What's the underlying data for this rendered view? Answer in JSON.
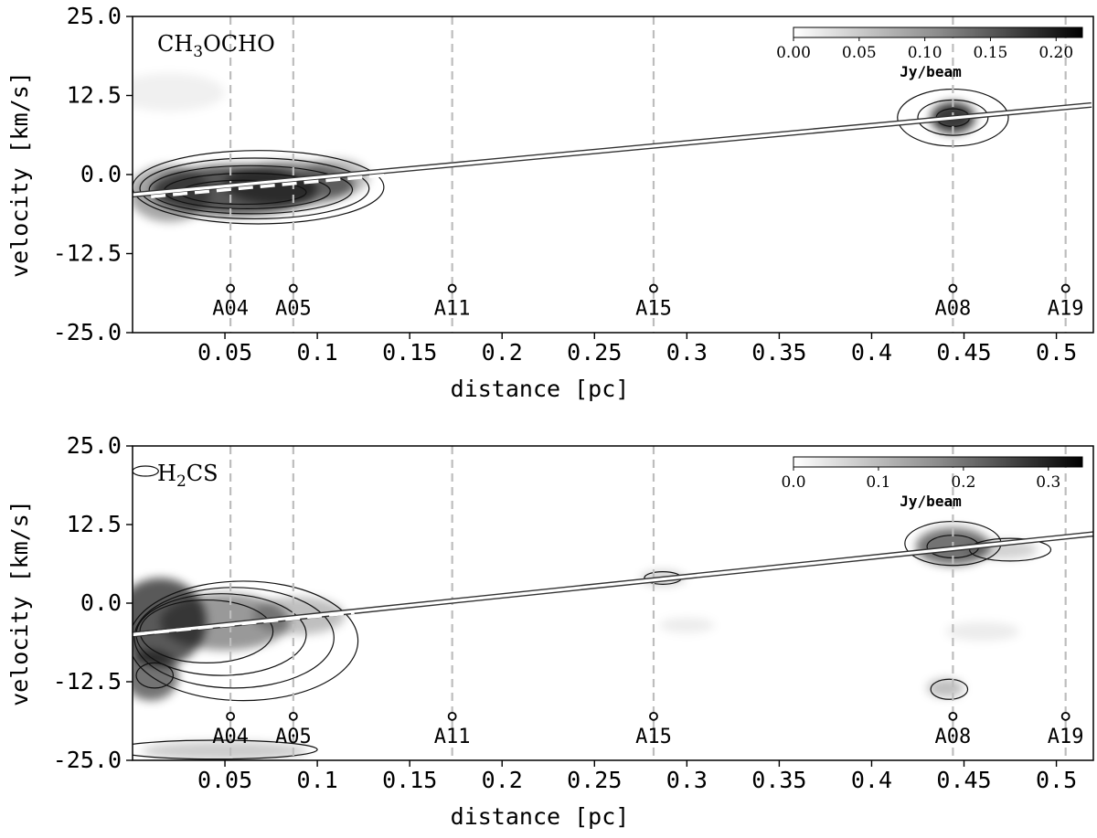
{
  "chart_data": [
    {
      "type": "heatmap",
      "title": "CH3OCHO",
      "molecule": {
        "base": "CH",
        "sub": "3",
        "rest": "OCHO"
      },
      "xlabel": "distance [pc]",
      "ylabel": "velocity [km/s]",
      "xlim": [
        0.0,
        0.52
      ],
      "ylim": [
        -25.0,
        25.0
      ],
      "xticks": [
        0.05,
        0.1,
        0.15,
        0.2,
        0.25,
        0.3,
        0.35,
        0.4,
        0.45,
        0.5
      ],
      "xtick_labels": [
        "0.05",
        "0.1",
        "0.15",
        "0.2",
        "0.25",
        "0.3",
        "0.35",
        "0.4",
        "0.45",
        "0.5"
      ],
      "yticks": [
        25.0,
        12.5,
        0.0,
        -12.5,
        -25.0
      ],
      "ytick_labels": [
        "25.0",
        "12.5",
        "0.0",
        "-12.5",
        "-25.0"
      ],
      "colorbar": {
        "label": "Jy/beam",
        "min": 0.0,
        "max": 0.22,
        "ticks": [
          0.0,
          0.05,
          0.1,
          0.15,
          0.2
        ],
        "tick_labels": [
          "0.00",
          "0.05",
          "0.10",
          "0.15",
          "0.20"
        ]
      },
      "sources": [
        {
          "name": "A04",
          "x": 0.053
        },
        {
          "name": "A05",
          "x": 0.087
        },
        {
          "name": "A11",
          "x": 0.173
        },
        {
          "name": "A15",
          "x": 0.282
        },
        {
          "name": "A08",
          "x": 0.444
        },
        {
          "name": "A19",
          "x": 0.505
        }
      ],
      "source_marker_velocity": -18.0,
      "fit_line": {
        "x": [
          0.0,
          0.519
        ],
        "y": [
          -3.2,
          11.0
        ]
      },
      "local_fit": {
        "x": [
          0.01,
          0.14
        ],
        "y": [
          -3.5,
          0.0
        ]
      },
      "emission": [
        {
          "x": 0.055,
          "v": -2.5,
          "sx": 0.045,
          "sv": 4.0,
          "peak": 0.17
        },
        {
          "x": 0.085,
          "v": -1.5,
          "sx": 0.035,
          "sv": 3.5,
          "peak": 0.13
        },
        {
          "x": 0.02,
          "v": -3.0,
          "sx": 0.022,
          "sv": 4.5,
          "peak": 0.09
        },
        {
          "x": 0.11,
          "v": -0.5,
          "sx": 0.018,
          "sv": 3.0,
          "peak": 0.07
        },
        {
          "x": 0.444,
          "v": 9.0,
          "sx": 0.012,
          "sv": 2.5,
          "peak": 0.2
        },
        {
          "x": 0.02,
          "v": 13.0,
          "sx": 0.03,
          "sv": 3.0,
          "peak": 0.015
        }
      ],
      "contours": [
        {
          "x": 0.068,
          "v": -2.0,
          "rx": 0.068,
          "rv": 5.8
        },
        {
          "x": 0.066,
          "v": -2.2,
          "rx": 0.062,
          "rv": 4.8
        },
        {
          "x": 0.064,
          "v": -2.4,
          "rx": 0.055,
          "rv": 3.8
        },
        {
          "x": 0.062,
          "v": -2.6,
          "rx": 0.045,
          "rv": 2.8
        },
        {
          "x": 0.06,
          "v": -2.8,
          "rx": 0.034,
          "rv": 1.9
        },
        {
          "x": 0.444,
          "v": 9.0,
          "rx": 0.03,
          "rv": 4.5
        },
        {
          "x": 0.444,
          "v": 9.0,
          "rx": 0.019,
          "rv": 2.8
        },
        {
          "x": 0.444,
          "v": 9.0,
          "rx": 0.009,
          "rv": 1.4
        }
      ]
    },
    {
      "type": "heatmap",
      "title": "H2CS",
      "molecule": {
        "base": "H",
        "sub": "2",
        "rest": "CS"
      },
      "xlabel": "distance [pc]",
      "ylabel": "velocity [km/s]",
      "xlim": [
        0.0,
        0.52
      ],
      "ylim": [
        -25.0,
        25.0
      ],
      "xticks": [
        0.05,
        0.1,
        0.15,
        0.2,
        0.25,
        0.3,
        0.35,
        0.4,
        0.45,
        0.5
      ],
      "xtick_labels": [
        "0.05",
        "0.1",
        "0.15",
        "0.2",
        "0.25",
        "0.3",
        "0.35",
        "0.4",
        "0.45",
        "0.5"
      ],
      "yticks": [
        25.0,
        12.5,
        0.0,
        -12.5,
        -25.0
      ],
      "ytick_labels": [
        "25.0",
        "12.5",
        "0.0",
        "-12.5",
        "-25.0"
      ],
      "colorbar": {
        "label": "Jy/beam",
        "min": 0.0,
        "max": 0.34,
        "ticks": [
          0.0,
          0.1,
          0.2,
          0.3
        ],
        "tick_labels": [
          "0.0",
          "0.1",
          "0.2",
          "0.3"
        ]
      },
      "sources": [
        {
          "name": "A04",
          "x": 0.053
        },
        {
          "name": "A05",
          "x": 0.087
        },
        {
          "name": "A11",
          "x": 0.173
        },
        {
          "name": "A15",
          "x": 0.282
        },
        {
          "name": "A08",
          "x": 0.444
        },
        {
          "name": "A19",
          "x": 0.505
        }
      ],
      "source_marker_velocity": -18.0,
      "fit_line": {
        "x": [
          0.0,
          0.52
        ],
        "y": [
          -5.0,
          11.0
        ]
      },
      "local_fit": {
        "x": [
          0.0,
          0.12
        ],
        "y": [
          -5.0,
          -1.5
        ]
      },
      "emission": [
        {
          "x": 0.015,
          "v": -3.0,
          "sx": 0.025,
          "sv": 7.0,
          "peak": 0.26
        },
        {
          "x": 0.01,
          "v": -11.5,
          "sx": 0.015,
          "sv": 4.0,
          "peak": 0.22
        },
        {
          "x": 0.05,
          "v": -3.0,
          "sx": 0.035,
          "sv": 4.5,
          "peak": 0.16
        },
        {
          "x": 0.09,
          "v": -2.0,
          "sx": 0.025,
          "sv": 3.0,
          "peak": 0.1
        },
        {
          "x": 0.05,
          "v": -23.5,
          "sx": 0.045,
          "sv": 1.5,
          "peak": 0.08
        },
        {
          "x": 0.444,
          "v": 9.0,
          "sx": 0.02,
          "sv": 3.0,
          "peak": 0.22
        },
        {
          "x": 0.47,
          "v": 8.5,
          "sx": 0.02,
          "sv": 1.5,
          "peak": 0.07
        },
        {
          "x": 0.44,
          "v": -13.5,
          "sx": 0.01,
          "sv": 1.5,
          "peak": 0.1
        },
        {
          "x": 0.287,
          "v": 4.0,
          "sx": 0.012,
          "sv": 1.2,
          "peak": 0.07
        },
        {
          "x": 0.3,
          "v": -3.5,
          "sx": 0.015,
          "sv": 1.2,
          "peak": 0.03
        },
        {
          "x": 0.46,
          "v": -4.5,
          "sx": 0.02,
          "sv": 1.5,
          "peak": 0.03
        }
      ],
      "contours": [
        {
          "x": 0.06,
          "v": -6.0,
          "rx": 0.062,
          "rv": 9.5
        },
        {
          "x": 0.055,
          "v": -5.5,
          "rx": 0.054,
          "rv": 8.0
        },
        {
          "x": 0.048,
          "v": -5.0,
          "rx": 0.046,
          "rv": 6.5
        },
        {
          "x": 0.04,
          "v": -4.5,
          "rx": 0.036,
          "rv": 5.0
        },
        {
          "x": 0.012,
          "v": -11.5,
          "rx": 0.01,
          "rv": 2.0
        },
        {
          "x": 0.444,
          "v": 9.5,
          "rx": 0.026,
          "rv": 3.5
        },
        {
          "x": 0.444,
          "v": 9.0,
          "rx": 0.014,
          "rv": 1.8
        },
        {
          "x": 0.475,
          "v": 8.5,
          "rx": 0.022,
          "rv": 1.8
        },
        {
          "x": 0.442,
          "v": -13.7,
          "rx": 0.01,
          "rv": 1.6
        },
        {
          "x": 0.287,
          "v": 4.0,
          "rx": 0.01,
          "rv": 1.0
        },
        {
          "x": 0.045,
          "v": -23.3,
          "rx": 0.055,
          "rv": 1.5
        },
        {
          "x": 0.007,
          "v": 21.0,
          "rx": 0.007,
          "rv": 0.8
        }
      ]
    }
  ]
}
